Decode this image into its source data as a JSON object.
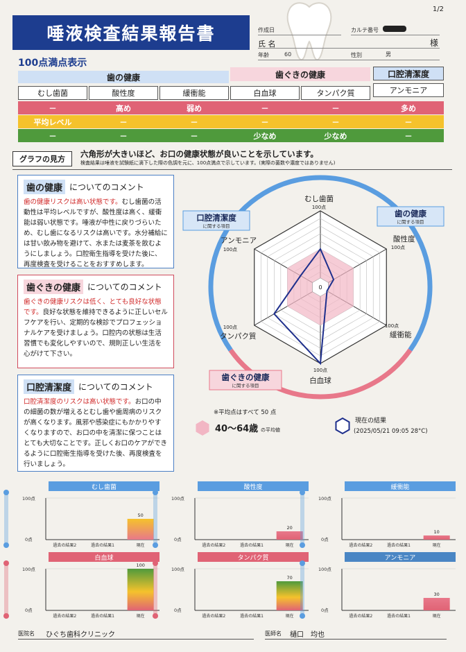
{
  "page_number": "1/2",
  "title": "唾液検査結果報告書",
  "patient": {
    "created_label": "作成日",
    "created_value": "",
    "chart_label": "カルテ番号",
    "name_label": "氏 名",
    "name_value": "",
    "sama": "様",
    "age_label": "年齢",
    "age_value": "60",
    "sex_label": "性別",
    "sex_value": "男"
  },
  "subtitle": "100点満点表示",
  "groups": [
    {
      "label": "歯の健康",
      "color": "#cfe0f5"
    },
    {
      "label": "歯ぐきの健康",
      "color": "#f7d6dd"
    },
    {
      "label": "口腔清潔度",
      "color": "#cfe0f5"
    }
  ],
  "columns": [
    "むし歯菌",
    "酸性度",
    "緩衝能",
    "白血球",
    "タンパク質",
    "アンモニア"
  ],
  "rows": [
    {
      "color": "#e06375",
      "cells": [
        "－",
        "高め",
        "弱め",
        "－",
        "－",
        "多め"
      ]
    },
    {
      "color": "#f5c22c",
      "cells": [
        "平均レベル",
        "－",
        "－",
        "－",
        "－",
        "－"
      ]
    },
    {
      "color": "#4f9a3c",
      "cells": [
        "－",
        "－",
        "－",
        "少なめ",
        "少なめ",
        "－"
      ]
    }
  ],
  "guide": {
    "label": "グラフの見方",
    "main": "六角形が大きいほど、お口の健康状態が良いことを示しています。",
    "sub": "検査結果は唾液を試験紙に滴下した際の色調を元に、100点満点で示しています。(実際の菌数や濃度ではありません)"
  },
  "comments": {
    "tooth": {
      "title": "歯の健康",
      "suffix": "についてのコメント",
      "highlight": "歯の健康リスクは高い状態です。",
      "body": "むし歯菌の活動性は平均レベルですが、酸性度は高く、緩衝能は弱い状態です。唾液が中性に戻りづらいため、むし歯になるリスクは高いです。水分補給には甘い飲み物を避けて、水または麦茶を飲むようにしましょう。口腔衛生指導を受けた後に、再度検査を受けることをおすすめします。"
    },
    "gum": {
      "title": "歯ぐきの健康",
      "suffix": "についてのコメント",
      "highlight": "歯ぐきの健康リスクは低く、とても良好な状態です。",
      "body": "良好な状態を維持できるように正しいセルフケアを行い、定期的な検診でプロフェッショナルケアを受けましょう。口腔内の状態は生活習慣でも変化しやすいので、規則正しい生活を心がけて下さい。"
    },
    "clean": {
      "title": "口腔清潔度",
      "suffix": "についてのコメント",
      "highlight": "口腔清潔度のリスクは高い状態です。",
      "body": "お口の中の細菌の数が増えるとむし歯や歯周病のリスクが高くなります。風邪や感染症にもかかりやすくなりますので、お口の中を清潔に保つことはとても大切なことです。正しくお口のケアができるように口腔衛生指導を受けた後、再度検査を行いましょう。"
    }
  },
  "radar": {
    "axes": [
      "むし歯菌",
      "酸性度",
      "緩衝能",
      "白血球",
      "タンパク質",
      "アンモニア"
    ],
    "max_label": "100点",
    "center": "0",
    "results": [
      50,
      20,
      10,
      100,
      70,
      30
    ],
    "average": [
      50,
      50,
      50,
      50,
      50,
      50
    ],
    "labels": {
      "tooth": "歯の健康",
      "tooth_sub": "に関する項目",
      "gum": "歯ぐきの健康",
      "gum_sub": "に関する項目",
      "clean": "口腔清潔度",
      "clean_sub": "に関する項目"
    },
    "note": "※平均点はすべて 50 点",
    "avg_age": "40〜64歳",
    "avg_label": "の平均値",
    "current_label": "現在の結果",
    "current_date": "(2025/05/21 09:05 28°C)"
  },
  "chart_data": [
    {
      "type": "bar",
      "title": "むし歯菌",
      "categories": [
        "過去の結果2",
        "過去の結果1",
        "現在"
      ],
      "values": [
        null,
        null,
        50
      ],
      "ylabel_top": "100点",
      "ylabel_bottom": "0点",
      "ylim": [
        0,
        100
      ]
    },
    {
      "type": "bar",
      "title": "酸性度",
      "categories": [
        "過去の結果2",
        "過去の結果1",
        "現在"
      ],
      "values": [
        null,
        null,
        20
      ],
      "ylabel_top": "100点",
      "ylabel_bottom": "0点",
      "ylim": [
        0,
        100
      ]
    },
    {
      "type": "bar",
      "title": "緩衝能",
      "categories": [
        "過去の結果2",
        "過去の結果1",
        "現在"
      ],
      "values": [
        null,
        null,
        10
      ],
      "ylabel_top": "100点",
      "ylabel_bottom": "0点",
      "ylim": [
        0,
        100
      ]
    },
    {
      "type": "bar",
      "title": "白血球",
      "categories": [
        "過去の結果2",
        "過去の結果1",
        "現在"
      ],
      "values": [
        null,
        null,
        100
      ],
      "ylabel_top": "100点",
      "ylabel_bottom": "0点",
      "ylim": [
        0,
        100
      ]
    },
    {
      "type": "bar",
      "title": "タンパク質",
      "categories": [
        "過去の結果2",
        "過去の結果1",
        "現在"
      ],
      "values": [
        null,
        null,
        70
      ],
      "ylabel_top": "100点",
      "ylabel_bottom": "0点",
      "ylim": [
        0,
        100
      ]
    },
    {
      "type": "bar",
      "title": "アンモニア",
      "categories": [
        "過去の結果2",
        "過去の結果1",
        "現在"
      ],
      "values": [
        null,
        null,
        30
      ],
      "ylabel_top": "100点",
      "ylabel_bottom": "0点",
      "ylim": [
        0,
        100
      ]
    }
  ],
  "footer": {
    "clinic_label": "医院名",
    "clinic_value": "ひぐち歯科クリニック",
    "doctor_label": "医師名",
    "doctor_value": "樋口　均也"
  }
}
